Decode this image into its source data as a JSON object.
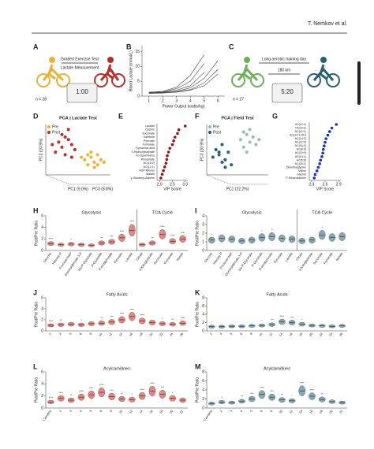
{
  "header": "T. Nemkov et al.",
  "A": {
    "letter": "A",
    "steps": [
      "Graded Exercise Test",
      "Lactate Measurement"
    ],
    "n": "n = 28",
    "timer": "1:00"
  },
  "B": {
    "letter": "B",
    "ylabel": "Blood Lactate (mmol/L)",
    "xlabel": "Power Output (watts/kg)",
    "xlim": [
      0.5,
      6.5
    ],
    "ylim": [
      0,
      17
    ],
    "xticks": [
      1,
      2,
      3,
      4,
      5,
      6
    ],
    "yticks": [
      0,
      5,
      10,
      15
    ],
    "x": [
      1,
      2,
      3,
      4,
      5,
      6
    ],
    "lines": [
      [
        1,
        1.2,
        1.6,
        2.8,
        6,
        12
      ],
      [
        1.1,
        1.3,
        2,
        3.5,
        8,
        null
      ],
      [
        0.9,
        1,
        1.4,
        2.2,
        4.5,
        9
      ],
      [
        1.2,
        1.5,
        2.5,
        5,
        11,
        null
      ],
      [
        1,
        1.1,
        1.3,
        2,
        3.5,
        7.5
      ],
      [
        1.3,
        1.6,
        3,
        7,
        14,
        null
      ]
    ]
  },
  "C": {
    "letter": "C",
    "steps": [
      "Long aerobic training day",
      "180 km"
    ],
    "n": "n = 27",
    "timer": "5:20"
  },
  "D": {
    "letter": "D",
    "title": "PCA | Lactate Test",
    "legend": [
      "Pre",
      "Post"
    ],
    "colors": [
      "#e8b23a",
      "#b5302a"
    ],
    "ylabel": "PC2 (10.9%)",
    "xlabel": "PC1 (9.0%)",
    "zlabel": "PC3 (8.8%)",
    "xlim": [
      -10,
      10
    ],
    "ylim": [
      -10,
      10
    ],
    "pre": {
      "x": [
        2,
        4,
        5,
        3,
        6,
        7,
        1,
        4,
        6,
        5,
        8,
        3
      ],
      "y": [
        -4,
        -3,
        -5,
        -6,
        -2,
        -4,
        -3,
        -1,
        -6,
        -7,
        -5,
        -2
      ]
    },
    "post": {
      "x": [
        -6,
        -4,
        -5,
        -2,
        -7,
        -3,
        -1,
        -5,
        -4,
        -8,
        -2,
        -3
      ],
      "y": [
        3,
        5,
        1,
        2,
        -1,
        4,
        0,
        6,
        -2,
        2,
        -3,
        8
      ]
    }
  },
  "E": {
    "letter": "E",
    "xlabel": "VIP Score",
    "xlim": [
      1.9,
      3.1
    ],
    "xticks": [
      {
        "value": 2,
        "label": "2.0"
      },
      2.5,
      {
        "value": 3,
        "label": "3.0"
      }
    ],
    "categories": [
      "Lactate",
      "Cystine",
      "Succinate",
      "Xanthine",
      "Pyruvate",
      "Fumarate",
      "Kynurenic acid",
      "3-Hydroxybutyrate",
      "Ko-Spermidine",
      "Phosphate",
      "AC(18:2)",
      "AC(12:1)",
      "ADP-Ribose",
      "Malate",
      "γ-Glutamyl-Alanine"
    ],
    "values": [
      3.0,
      2.75,
      2.7,
      2.6,
      2.55,
      2.5,
      2.4,
      2.35,
      2.3,
      2.28,
      2.25,
      2.2,
      2.15,
      2.1,
      2.05
    ]
  },
  "F": {
    "letter": "F",
    "title": "PCA | Field Test",
    "legend": [
      "Pre",
      "Post"
    ],
    "colors": [
      "#8fc1b0",
      "#2a5f6e"
    ],
    "ylabel": "PC3 (10.9%)",
    "xlabel": "PC1 (22.2%)",
    "xlim": [
      -10,
      10
    ],
    "ylim": [
      -10,
      10
    ],
    "pre": {
      "x": [
        1,
        3,
        4,
        2,
        5,
        6,
        2,
        4,
        7,
        3
      ],
      "y": [
        4,
        6,
        3,
        7,
        5,
        2,
        1,
        8,
        4,
        -1
      ]
    },
    "post": {
      "x": [
        -6,
        -4,
        -7,
        -5,
        -3,
        -8,
        -2,
        -5,
        -4,
        -6
      ],
      "y": [
        -2,
        -4,
        0,
        -5,
        -1,
        -3,
        -6,
        2,
        -7,
        -1
      ]
    }
  },
  "G": {
    "letter": "G",
    "xlabel": "VIP Score",
    "xlim": [
      2.25,
      2.95
    ],
    "xticks": [
      2.3,
      2.6,
      2.9
    ],
    "categories": [
      "AC(12:1)",
      "FA(16:1)",
      "AC(10:1)",
      "AC(14:1-OH)",
      "AC(14:2)",
      "AC(12:0)",
      "AC(16:2)",
      "AC(8:0)",
      "AC(10:0)",
      "AC(14:1)",
      "AC(6:0)",
      "AC(16:1)",
      "Dimethylglycine",
      "Valine",
      "Glycine",
      "P-Ethanolamine"
    ],
    "values": [
      2.85,
      2.75,
      2.7,
      2.66,
      2.62,
      2.6,
      2.58,
      2.56,
      2.55,
      2.53,
      2.5,
      2.48,
      2.45,
      2.42,
      2.38,
      2.36
    ]
  },
  "H": {
    "letter": "H",
    "ylabel": "Post/Pre Ratio",
    "ylim": [
      0,
      6
    ],
    "yticks": [
      0,
      2,
      4,
      6
    ],
    "color": "#b5302a",
    "groups": [
      {
        "title": "Glycolysis",
        "categories": [
          "Glucose",
          "Hexose-P",
          "Fructose-bisP",
          "Glyceraldehyde-3-P",
          "bis-P-Glycerate",
          "P-Glycerate",
          "P-enolpyruvate",
          "Pyruvate",
          "Lactate"
        ],
        "values": [
          1.2,
          1.0,
          1.1,
          1.0,
          0.9,
          1.3,
          1.5,
          2.2,
          3.5
        ],
        "stars": [
          "****",
          null,
          "*",
          null,
          null,
          "**",
          "***",
          "****",
          "****"
        ]
      },
      {
        "title": "TCA Cycle",
        "categories": [
          "Citrate",
          "α-Ketoglutarate",
          "Succinate",
          "Fumarate",
          "Malate"
        ],
        "values": [
          1.0,
          1.3,
          2.8,
          1.6,
          2.0
        ],
        "stars": [
          null,
          "**",
          "****",
          "****",
          "****"
        ]
      }
    ]
  },
  "I": {
    "letter": "I",
    "ylabel": "Post/Pre Ratio",
    "ylim": [
      0,
      4
    ],
    "yticks": [
      0,
      1,
      2,
      3,
      4
    ],
    "color": "#2a5f6e",
    "groups": [
      {
        "title": "Glycolysis",
        "categories": [
          "Glucose",
          "Hexose-P",
          "Fructose-bisP",
          "Glyceraldehyde-3-P",
          "bis-P-Glycerate",
          "P-Glycerate",
          "P-enolpyruvate",
          "Pyruvate",
          "Lactate"
        ],
        "values": [
          1.2,
          1.4,
          1.3,
          1.1,
          1.2,
          1.5,
          1.6,
          1.4,
          1.3
        ],
        "stars": [
          "*",
          null,
          null,
          null,
          null,
          "*",
          "*",
          null,
          null
        ]
      },
      {
        "title": "TCA Cycle",
        "categories": [
          "Citrate",
          "α-Ketoglutarate",
          "Succinate",
          "Fumarate",
          "Malate"
        ],
        "values": [
          1.1,
          1.2,
          1.8,
          1.5,
          1.6
        ],
        "stars": [
          null,
          null,
          "*",
          null,
          null
        ]
      }
    ]
  },
  "J": {
    "letter": "J",
    "ylabel": "Post/Pre Ratio",
    "ylim": [
      0,
      6
    ],
    "yticks": [
      0,
      2,
      4,
      6
    ],
    "color": "#b5302a",
    "groups": [
      {
        "title": "Fatty Acids",
        "categories": [
          "2",
          "4",
          "5",
          "6",
          "8",
          "10",
          "12",
          "14",
          "16",
          "18",
          "20",
          "22",
          "24",
          "26"
        ],
        "values": [
          1.0,
          1.1,
          1.2,
          1.1,
          1.3,
          1.4,
          1.6,
          2.0,
          2.6,
          1.8,
          1.5,
          1.3,
          1.2,
          1.4
        ],
        "stars": [
          "****",
          "**",
          null,
          "*",
          null,
          "**",
          "***",
          "****",
          "****",
          "****",
          null,
          "*",
          "**",
          "****"
        ]
      }
    ]
  },
  "K": {
    "letter": "K",
    "ylabel": "Post/Pre Ratio",
    "ylim": [
      0,
      8
    ],
    "yticks": [
      0,
      2,
      4,
      6,
      8
    ],
    "color": "#2a5f6e",
    "groups": [
      {
        "title": "Fatty Acids",
        "categories": [
          "2",
          "4",
          "5",
          "6",
          "8",
          "10",
          "12",
          "14",
          "16",
          "18",
          "20",
          "22",
          "24",
          "26"
        ],
        "values": [
          1.0,
          1.0,
          1.1,
          1.1,
          1.2,
          1.3,
          1.5,
          2.2,
          2.0,
          1.6,
          1.3,
          1.2,
          1.1,
          1.2
        ],
        "stars": [
          "*",
          null,
          null,
          null,
          null,
          "*",
          "**",
          "****",
          "***",
          "*",
          null,
          null,
          null,
          null
        ]
      }
    ]
  },
  "L": {
    "letter": "L",
    "ylabel": "Post/Pre Ratio",
    "ylim": [
      0,
      6
    ],
    "yticks": [
      0,
      2,
      4,
      6
    ],
    "color": "#b5302a",
    "groups": [
      {
        "title": "Acylcarnitines",
        "categories": [
          "Carnitine",
          "2",
          "3",
          "4",
          "5",
          "6",
          "8",
          "10",
          "12",
          "14",
          "16",
          "18",
          "20",
          "22"
        ],
        "values": [
          1.0,
          1.6,
          1.3,
          1.8,
          2.2,
          2.6,
          1.9,
          1.5,
          1.4,
          2.0,
          2.8,
          2.3,
          1.6,
          1.3
        ],
        "stars": [
          "****",
          "****",
          "**",
          "****",
          "****",
          "****",
          "***",
          "**",
          "*",
          "****",
          "****",
          "***",
          "*",
          null
        ]
      }
    ]
  },
  "M": {
    "letter": "M",
    "ylabel": "Post/Pre Ratio",
    "ylim": [
      0,
      8
    ],
    "yticks": [
      0,
      2,
      4,
      6,
      8
    ],
    "color": "#2a5f6e",
    "groups": [
      {
        "title": "Acylcarnitines",
        "categories": [
          "Carnitine",
          "2",
          "3",
          "4",
          "5",
          "6",
          "8",
          "10",
          "12",
          "14",
          "16",
          "18",
          "20",
          "22"
        ],
        "values": [
          1.0,
          1.3,
          1.2,
          1.5,
          2.0,
          3.0,
          2.4,
          1.8,
          1.6,
          3.8,
          2.6,
          1.9,
          1.4,
          1.2
        ],
        "stars": [
          null,
          "*",
          null,
          "**",
          "***",
          "****",
          "***",
          "**",
          "*",
          "****",
          "****",
          "**",
          null,
          null
        ]
      }
    ]
  }
}
